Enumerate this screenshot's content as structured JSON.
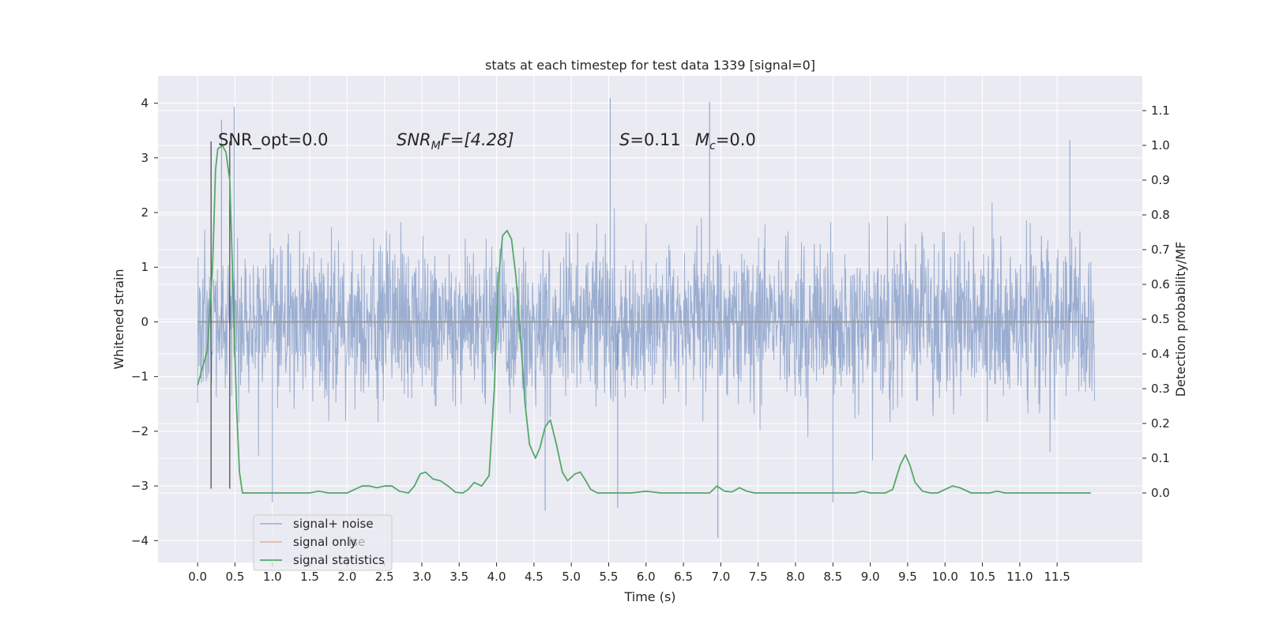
{
  "chart_data": {
    "type": "line",
    "title": "stats at each timestep for test data 1339 [signal=0]",
    "xlabel": "Time (s)",
    "ylabel_left": "Whitened strain",
    "ylabel_right": "Detection probability/MF",
    "xlim": [
      -0.53,
      12.64
    ],
    "ylim_left": [
      -4.4,
      4.5
    ],
    "ylim_right": [
      -0.2,
      1.2
    ],
    "x_ticks": [
      "0.0",
      "0.5",
      "1.0",
      "1.5",
      "2.0",
      "2.5",
      "3.0",
      "3.5",
      "4.0",
      "4.5",
      "5.0",
      "5.5",
      "6.0",
      "6.5",
      "7.0",
      "7.5",
      "8.0",
      "8.5",
      "9.0",
      "9.5",
      "10.0",
      "10.5",
      "11.0",
      "11.5"
    ],
    "y_ticks_left": [
      "4",
      "3",
      "2",
      "1",
      "0",
      "−1",
      "−2",
      "−3",
      "−4"
    ],
    "y_ticks_right": [
      "1.1",
      "1.0",
      "0.9",
      "0.8",
      "0.7",
      "0.6",
      "0.5",
      "0.4",
      "0.3",
      "0.2",
      "0.1",
      "0.0"
    ],
    "grid": true,
    "legend_position": "lower-left",
    "series": [
      {
        "name": "signal+ noise",
        "color": "#4c72b0",
        "axis": "left",
        "description_range": [
          -4.0,
          4.1
        ],
        "x_range": [
          0.0,
          12.0
        ],
        "peaks": [
          [
            0.49,
            3.93
          ],
          [
            5.52,
            4.09
          ],
          [
            6.85,
            4.02
          ],
          [
            11.67,
            3.32
          ],
          [
            0.32,
            3.7
          ]
        ],
        "troughs": [
          [
            4.65,
            -3.45
          ],
          [
            6.96,
            -3.95
          ],
          [
            1.0,
            -3.3
          ],
          [
            8.5,
            -3.3
          ],
          [
            5.62,
            -3.4
          ]
        ]
      },
      {
        "name": "signal only",
        "color": "#dd8452",
        "axis": "left",
        "x": [
          0.0,
          12.0
        ],
        "y": [
          0.0,
          0.0
        ]
      },
      {
        "name": "signal statistics",
        "color": "#55a868",
        "axis": "right",
        "x": [
          0.0,
          0.13,
          0.2,
          0.24,
          0.27,
          0.33,
          0.38,
          0.43,
          0.47,
          0.52,
          0.56,
          0.6,
          0.65,
          0.8,
          1.0,
          1.3,
          1.5,
          1.62,
          1.75,
          2.0,
          2.1,
          2.2,
          2.3,
          2.4,
          2.5,
          2.6,
          2.7,
          2.82,
          2.9,
          2.98,
          3.05,
          3.15,
          3.25,
          3.35,
          3.45,
          3.55,
          3.62,
          3.7,
          3.8,
          3.9,
          3.97,
          4.02,
          4.08,
          4.14,
          4.2,
          4.26,
          4.32,
          4.38,
          4.44,
          4.52,
          4.58,
          4.65,
          4.72,
          4.8,
          4.88,
          4.95,
          5.05,
          5.12,
          5.18,
          5.26,
          5.35,
          5.5,
          5.8,
          6.0,
          6.2,
          6.4,
          6.6,
          6.85,
          6.95,
          7.05,
          7.15,
          7.25,
          7.35,
          7.45,
          7.6,
          7.8,
          8.0,
          8.5,
          8.8,
          8.9,
          9.0,
          9.2,
          9.3,
          9.4,
          9.47,
          9.53,
          9.6,
          9.7,
          9.8,
          9.9,
          10.0,
          10.1,
          10.2,
          10.35,
          10.5,
          10.6,
          10.7,
          10.8,
          11.0,
          11.5,
          11.95
        ],
        "y": [
          0.31,
          0.41,
          0.65,
          0.93,
          0.99,
          1.0,
          0.98,
          0.9,
          0.62,
          0.25,
          0.06,
          0.0,
          0.0,
          0.0,
          0.0,
          0.0,
          0.0,
          0.005,
          0.0,
          0.0,
          0.01,
          0.02,
          0.02,
          0.015,
          0.02,
          0.02,
          0.005,
          0.0,
          0.02,
          0.055,
          0.06,
          0.04,
          0.035,
          0.02,
          0.002,
          0.0,
          0.01,
          0.03,
          0.02,
          0.05,
          0.3,
          0.6,
          0.74,
          0.755,
          0.73,
          0.62,
          0.45,
          0.26,
          0.14,
          0.1,
          0.13,
          0.19,
          0.21,
          0.14,
          0.06,
          0.035,
          0.055,
          0.06,
          0.04,
          0.01,
          0.0,
          0.0,
          0.0,
          0.005,
          0.0,
          0.0,
          0.0,
          0.0,
          0.02,
          0.005,
          0.003,
          0.015,
          0.005,
          0.0,
          0.0,
          0.0,
          0.0,
          0.0,
          0.0,
          0.005,
          0.0,
          0.0,
          0.01,
          0.08,
          0.11,
          0.08,
          0.03,
          0.005,
          0.0,
          0.0,
          0.01,
          0.02,
          0.015,
          0.0,
          0.0,
          0.0,
          0.005,
          0.0,
          0.0,
          0.0,
          0.0
        ]
      }
    ],
    "vertical_lines": [
      {
        "x": 0.18,
        "y_range": [
          -3.05,
          3.3
        ]
      },
      {
        "x": 0.43,
        "y_range": [
          -3.05,
          3.3
        ]
      }
    ],
    "annotations": [
      {
        "id": "snr_opt",
        "text": "SNR_opt=0.0"
      },
      {
        "id": "snr_mf",
        "prefix": "SNR",
        "sub": "M",
        "mid": "F=[4.28]"
      },
      {
        "id": "s",
        "italic": "S",
        "rest": "=0.11"
      },
      {
        "id": "mc",
        "italic": "M",
        "sub": "c",
        "rest": "=0.0"
      }
    ],
    "legend_overlap_fragment": "ise"
  }
}
